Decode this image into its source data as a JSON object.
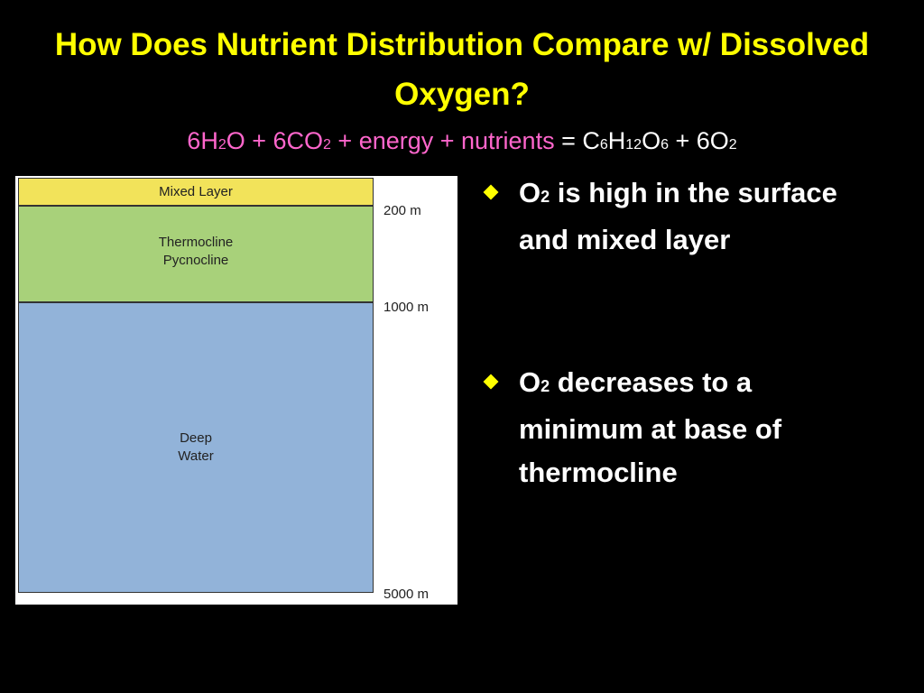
{
  "title": "How Does Nutrient Distribution Compare w/ Dissolved Oxygen?",
  "equation": {
    "reactants": [
      [
        "6H",
        "2"
      ],
      [
        "O + 6CO",
        "2"
      ],
      [
        " + energy + nutrients"
      ]
    ],
    "products": [
      [
        "= C",
        "6"
      ],
      [
        "H",
        "12"
      ],
      [
        "O",
        "6"
      ],
      [
        " + 6O",
        "2"
      ]
    ]
  },
  "diagram": {
    "layers": [
      {
        "lines": [
          "Mixed Layer"
        ]
      },
      {
        "lines": [
          "Thermocline",
          "Pycnocline"
        ]
      },
      {
        "lines": [
          "Deep",
          "Water"
        ]
      }
    ],
    "depths": [
      "200 m",
      "1000 m",
      "5000 m"
    ]
  },
  "bullets": [
    {
      "lead": "O",
      "sub": "2",
      "text": "is high in the surface and mixed layer"
    },
    {
      "lead": "O",
      "sub": "2",
      "text": "decreases to a minimum at base of thermocline"
    }
  ]
}
